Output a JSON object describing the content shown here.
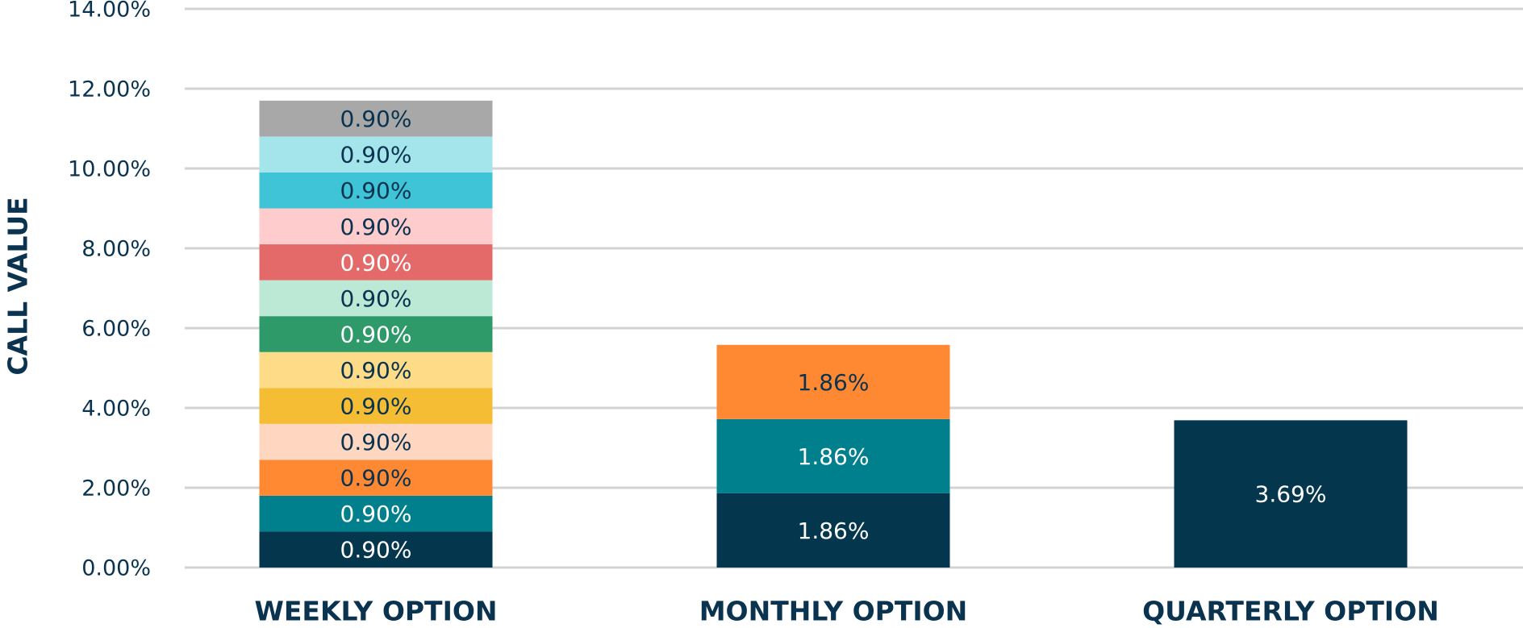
{
  "chart_data": {
    "type": "stacked_bar",
    "y_label": "CALL VALUE",
    "categories": [
      "WEEKLY OPTION",
      "MONTHLY OPTION",
      "QUARTERLY OPTION"
    ],
    "series": [
      {
        "color": "#04364d",
        "values": [
          0.9,
          1.86,
          3.69
        ],
        "value_labels": [
          "0.90%",
          "1.86%",
          "3.69%"
        ]
      },
      {
        "color": "#007f8c",
        "values": [
          0.9,
          1.86,
          null
        ],
        "value_labels": [
          "0.90%",
          "1.86%",
          null
        ]
      },
      {
        "color": "#ff8833",
        "values": [
          0.9,
          1.86,
          null
        ],
        "value_labels": [
          "0.90%",
          "1.86%",
          null
        ]
      },
      {
        "color": "#ffd6c0",
        "values": [
          0.9,
          null,
          null
        ],
        "value_labels": [
          "0.90%",
          null,
          null
        ]
      },
      {
        "color": "#f5bd33",
        "values": [
          0.9,
          null,
          null
        ],
        "value_labels": [
          "0.90%",
          null,
          null
        ]
      },
      {
        "color": "#fddb87",
        "values": [
          0.9,
          null,
          null
        ],
        "value_labels": [
          "0.90%",
          null,
          null
        ]
      },
      {
        "color": "#2e9a6a",
        "values": [
          0.9,
          null,
          null
        ],
        "value_labels": [
          "0.90%",
          null,
          null
        ]
      },
      {
        "color": "#bce9d6",
        "values": [
          0.9,
          null,
          null
        ],
        "value_labels": [
          "0.90%",
          null,
          null
        ]
      },
      {
        "color": "#e46a6a",
        "values": [
          0.9,
          null,
          null
        ],
        "value_labels": [
          "0.90%",
          null,
          null
        ]
      },
      {
        "color": "#fecccc",
        "values": [
          0.9,
          null,
          null
        ],
        "value_labels": [
          "0.90%",
          null,
          null
        ]
      },
      {
        "color": "#3fc3d6",
        "values": [
          0.9,
          null,
          null
        ],
        "value_labels": [
          "0.90%",
          null,
          null
        ]
      },
      {
        "color": "#a4e5ec",
        "values": [
          0.9,
          null,
          null
        ],
        "value_labels": [
          "0.90%",
          null,
          null
        ]
      },
      {
        "color": "#a8a8a8",
        "values": [
          0.9,
          null,
          null
        ],
        "value_labels": [
          "0.90%",
          null,
          null
        ]
      }
    ],
    "ylim": [
      0,
      14
    ],
    "yticks": [
      {
        "value": 0,
        "label": "0.00%"
      },
      {
        "value": 2,
        "label": "2.00%"
      },
      {
        "value": 4,
        "label": "4.00%"
      },
      {
        "value": 6,
        "label": "6.00%"
      },
      {
        "value": 8,
        "label": "8.00%"
      },
      {
        "value": 10,
        "label": "10.00%"
      },
      {
        "value": 12,
        "label": "12.00%"
      },
      {
        "value": 14,
        "label": "14.00%"
      }
    ],
    "grid": true
  }
}
